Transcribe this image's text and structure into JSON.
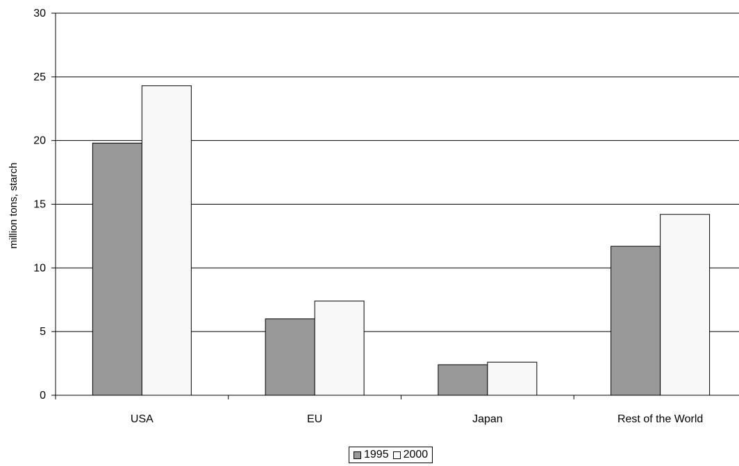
{
  "chart_data": {
    "type": "bar",
    "title": "",
    "xlabel": "",
    "ylabel": "million tons, starch",
    "categories": [
      "USA",
      "EU",
      "Japan",
      "Rest of the World"
    ],
    "series": [
      {
        "name": "1995",
        "values": [
          19.8,
          6.0,
          2.4,
          11.7
        ],
        "color": "#999999"
      },
      {
        "name": "2000",
        "values": [
          24.3,
          7.4,
          2.6,
          14.2
        ],
        "color": "#f8f8f8"
      }
    ],
    "ylim": [
      0,
      30
    ],
    "yticks": [
      0,
      5,
      10,
      15,
      20,
      25,
      30
    ],
    "grid": true,
    "legend_position": "bottom"
  }
}
